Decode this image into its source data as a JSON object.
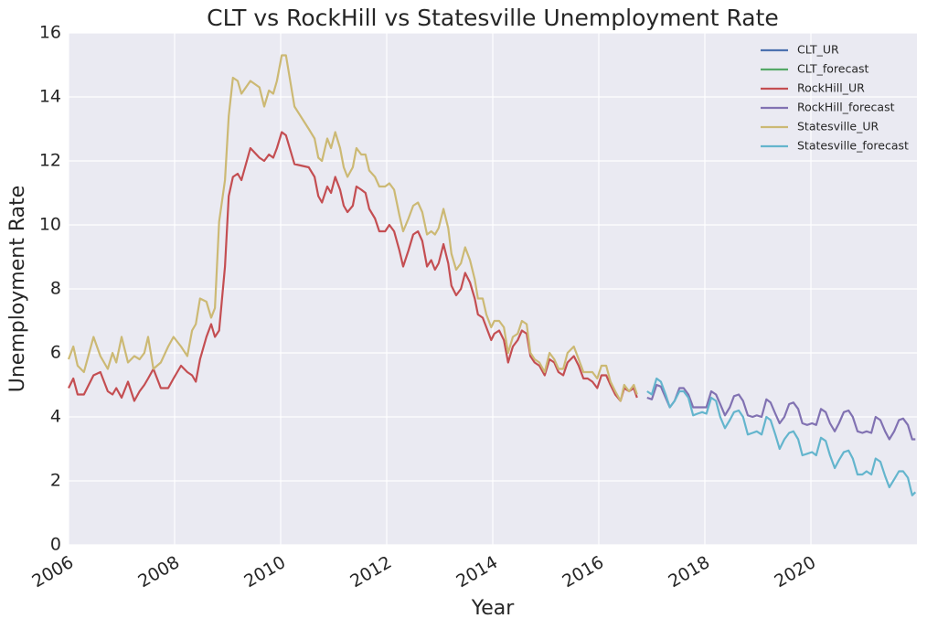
{
  "chart_data": {
    "type": "line",
    "title": "CLT vs RockHill vs Statesville Unemployment Rate",
    "x_label": "Year",
    "y_label": "Unemployment Rate",
    "xlim": [
      2006,
      2022
    ],
    "xticks": [
      2006,
      2008,
      2010,
      2012,
      2014,
      2016,
      2018,
      2020
    ],
    "ylim": [
      0,
      16
    ],
    "yticks": [
      0,
      2,
      4,
      6,
      8,
      10,
      12,
      14,
      16
    ],
    "grid": true,
    "legend": "upper right",
    "series": [
      {
        "name": "CLT_UR",
        "color": "#4c72b0",
        "x": [],
        "values": []
      },
      {
        "name": "CLT_forecast",
        "color": "#55a868",
        "x": [],
        "values": []
      },
      {
        "name": "RockHill_UR",
        "color": "#c44e52",
        "x": [
          2006.0,
          2006.09,
          2006.17,
          2006.29,
          2006.47,
          2006.6,
          2006.74,
          2006.83,
          2006.9,
          2007.0,
          2007.12,
          2007.24,
          2007.34,
          2007.43,
          2007.5,
          2007.6,
          2007.74,
          2007.88,
          2007.98,
          2008.12,
          2008.24,
          2008.33,
          2008.4,
          2008.48,
          2008.6,
          2008.69,
          2008.76,
          2008.84,
          2008.95,
          2009.02,
          2009.1,
          2009.19,
          2009.26,
          2009.43,
          2009.6,
          2009.69,
          2009.78,
          2009.86,
          2009.93,
          2010.02,
          2010.1,
          2010.26,
          2010.53,
          2010.64,
          2010.71,
          2010.78,
          2010.88,
          2010.95,
          2011.03,
          2011.12,
          2011.19,
          2011.26,
          2011.36,
          2011.43,
          2011.52,
          2011.6,
          2011.67,
          2011.78,
          2011.86,
          2011.97,
          2012.05,
          2012.14,
          2012.24,
          2012.31,
          2012.41,
          2012.5,
          2012.59,
          2012.67,
          2012.76,
          2012.84,
          2012.91,
          2012.98,
          2013.07,
          2013.16,
          2013.22,
          2013.31,
          2013.4,
          2013.48,
          2013.57,
          2013.66,
          2013.72,
          2013.81,
          2013.88,
          2013.97,
          2014.03,
          2014.12,
          2014.21,
          2014.29,
          2014.38,
          2014.47,
          2014.55,
          2014.64,
          2014.71,
          2014.79,
          2014.88,
          2014.98,
          2015.07,
          2015.16,
          2015.24,
          2015.33,
          2015.41,
          2015.53,
          2015.62,
          2015.71,
          2015.79,
          2015.88,
          2015.97,
          2016.05,
          2016.14,
          2016.22,
          2016.31,
          2016.41,
          2016.48,
          2016.57,
          2016.66,
          2016.72
        ],
        "values": [
          4.9,
          5.2,
          4.7,
          4.7,
          5.3,
          5.4,
          4.8,
          4.7,
          4.9,
          4.6,
          5.1,
          4.5,
          4.8,
          5.0,
          5.2,
          5.5,
          4.9,
          4.9,
          5.2,
          5.6,
          5.4,
          5.3,
          5.1,
          5.8,
          6.5,
          6.9,
          6.5,
          6.7,
          8.7,
          10.9,
          11.5,
          11.6,
          11.4,
          12.4,
          12.1,
          12.0,
          12.2,
          12.1,
          12.4,
          12.9,
          12.8,
          11.9,
          11.8,
          11.5,
          10.9,
          10.7,
          11.2,
          11.0,
          11.5,
          11.1,
          10.6,
          10.4,
          10.6,
          11.2,
          11.1,
          11.0,
          10.5,
          10.2,
          9.8,
          9.8,
          10.0,
          9.8,
          9.2,
          8.7,
          9.2,
          9.7,
          9.8,
          9.5,
          8.7,
          8.9,
          8.6,
          8.8,
          9.4,
          8.8,
          8.1,
          7.8,
          8.0,
          8.5,
          8.2,
          7.7,
          7.2,
          7.1,
          6.8,
          6.4,
          6.6,
          6.7,
          6.4,
          5.7,
          6.2,
          6.4,
          6.7,
          6.6,
          5.9,
          5.7,
          5.6,
          5.3,
          5.8,
          5.7,
          5.4,
          5.3,
          5.7,
          5.9,
          5.6,
          5.2,
          5.2,
          5.1,
          4.9,
          5.3,
          5.3,
          5.0,
          4.7,
          4.5,
          4.9,
          4.8,
          4.9,
          4.6
        ]
      },
      {
        "name": "RockHill_forecast",
        "color": "#8172b2",
        "x": [
          2016.91,
          2017.0,
          2017.09,
          2017.17,
          2017.26,
          2017.34,
          2017.43,
          2017.52,
          2017.6,
          2017.69,
          2017.78,
          2017.86,
          2017.95,
          2018.03,
          2018.12,
          2018.21,
          2018.29,
          2018.38,
          2018.47,
          2018.55,
          2018.64,
          2018.72,
          2018.81,
          2018.9,
          2018.98,
          2019.07,
          2019.16,
          2019.24,
          2019.33,
          2019.41,
          2019.5,
          2019.59,
          2019.67,
          2019.76,
          2019.84,
          2019.93,
          2020.02,
          2020.1,
          2020.19,
          2020.28,
          2020.36,
          2020.45,
          2020.53,
          2020.62,
          2020.71,
          2020.79,
          2020.88,
          2020.97,
          2021.05,
          2021.14,
          2021.22,
          2021.31,
          2021.4,
          2021.48,
          2021.57,
          2021.66,
          2021.74,
          2021.83,
          2021.91,
          2021.97
        ],
        "values": [
          4.6,
          4.55,
          5.0,
          4.95,
          4.6,
          4.3,
          4.5,
          4.9,
          4.9,
          4.7,
          4.3,
          4.3,
          4.3,
          4.3,
          4.8,
          4.7,
          4.4,
          4.05,
          4.3,
          4.65,
          4.7,
          4.5,
          4.05,
          4.0,
          4.05,
          4.0,
          4.55,
          4.45,
          4.1,
          3.8,
          4.0,
          4.4,
          4.45,
          4.25,
          3.8,
          3.75,
          3.8,
          3.75,
          4.25,
          4.15,
          3.8,
          3.55,
          3.8,
          4.15,
          4.2,
          4.0,
          3.55,
          3.5,
          3.55,
          3.5,
          4.0,
          3.9,
          3.55,
          3.3,
          3.55,
          3.9,
          3.95,
          3.75,
          3.3,
          3.3
        ]
      },
      {
        "name": "Statesville_UR",
        "color": "#ccb974",
        "x": [
          2006.0,
          2006.09,
          2006.17,
          2006.29,
          2006.47,
          2006.6,
          2006.74,
          2006.83,
          2006.9,
          2007.0,
          2007.12,
          2007.24,
          2007.34,
          2007.43,
          2007.5,
          2007.6,
          2007.74,
          2007.88,
          2007.98,
          2008.12,
          2008.24,
          2008.33,
          2008.4,
          2008.48,
          2008.6,
          2008.69,
          2008.76,
          2008.84,
          2008.95,
          2009.02,
          2009.1,
          2009.19,
          2009.26,
          2009.43,
          2009.6,
          2009.69,
          2009.78,
          2009.86,
          2009.93,
          2010.02,
          2010.1,
          2010.26,
          2010.53,
          2010.64,
          2010.71,
          2010.78,
          2010.88,
          2010.95,
          2011.03,
          2011.12,
          2011.19,
          2011.26,
          2011.36,
          2011.43,
          2011.52,
          2011.6,
          2011.67,
          2011.78,
          2011.86,
          2011.97,
          2012.05,
          2012.14,
          2012.24,
          2012.31,
          2012.41,
          2012.5,
          2012.59,
          2012.67,
          2012.76,
          2012.84,
          2012.91,
          2012.98,
          2013.07,
          2013.16,
          2013.22,
          2013.31,
          2013.4,
          2013.48,
          2013.57,
          2013.66,
          2013.72,
          2013.81,
          2013.88,
          2013.97,
          2014.03,
          2014.12,
          2014.21,
          2014.29,
          2014.38,
          2014.47,
          2014.55,
          2014.64,
          2014.71,
          2014.79,
          2014.88,
          2014.98,
          2015.07,
          2015.16,
          2015.24,
          2015.33,
          2015.41,
          2015.53,
          2015.62,
          2015.71,
          2015.79,
          2015.88,
          2015.97,
          2016.05,
          2016.14,
          2016.22,
          2016.31,
          2016.41,
          2016.48,
          2016.57,
          2016.66,
          2016.72
        ],
        "values": [
          5.8,
          6.2,
          5.6,
          5.4,
          6.5,
          5.9,
          5.5,
          6.0,
          5.7,
          6.5,
          5.7,
          5.9,
          5.8,
          6.0,
          6.5,
          5.5,
          5.7,
          6.2,
          6.5,
          6.2,
          5.9,
          6.7,
          6.9,
          7.7,
          7.6,
          7.1,
          7.4,
          10.1,
          11.4,
          13.4,
          14.6,
          14.5,
          14.1,
          14.5,
          14.3,
          13.7,
          14.2,
          14.1,
          14.5,
          15.3,
          15.3,
          13.7,
          13.0,
          12.7,
          12.1,
          12.0,
          12.7,
          12.4,
          12.9,
          12.4,
          11.8,
          11.5,
          11.8,
          12.4,
          12.2,
          12.2,
          11.7,
          11.5,
          11.2,
          11.2,
          11.3,
          11.1,
          10.3,
          9.8,
          10.2,
          10.6,
          10.7,
          10.4,
          9.7,
          9.8,
          9.7,
          9.9,
          10.5,
          9.9,
          9.1,
          8.6,
          8.8,
          9.3,
          8.9,
          8.3,
          7.7,
          7.7,
          7.2,
          6.8,
          7.0,
          7.0,
          6.8,
          6.0,
          6.5,
          6.6,
          7.0,
          6.9,
          6.0,
          5.8,
          5.7,
          5.4,
          6.0,
          5.8,
          5.5,
          5.5,
          6.0,
          6.2,
          5.8,
          5.4,
          5.4,
          5.4,
          5.2,
          5.6,
          5.6,
          5.1,
          4.8,
          4.5,
          5.0,
          4.8,
          5.0,
          4.7
        ]
      },
      {
        "name": "Statesville_forecast",
        "color": "#64b5cd",
        "x": [
          2016.91,
          2017.0,
          2017.09,
          2017.17,
          2017.26,
          2017.34,
          2017.43,
          2017.52,
          2017.6,
          2017.69,
          2017.78,
          2017.86,
          2017.95,
          2018.03,
          2018.12,
          2018.21,
          2018.29,
          2018.38,
          2018.47,
          2018.55,
          2018.64,
          2018.72,
          2018.81,
          2018.9,
          2018.98,
          2019.07,
          2019.16,
          2019.24,
          2019.33,
          2019.41,
          2019.5,
          2019.59,
          2019.67,
          2019.76,
          2019.84,
          2019.93,
          2020.02,
          2020.1,
          2020.19,
          2020.28,
          2020.36,
          2020.45,
          2020.53,
          2020.62,
          2020.71,
          2020.79,
          2020.88,
          2020.97,
          2021.05,
          2021.14,
          2021.22,
          2021.31,
          2021.4,
          2021.48,
          2021.57,
          2021.66,
          2021.74,
          2021.83,
          2021.91,
          2021.97
        ],
        "values": [
          4.8,
          4.7,
          5.2,
          5.1,
          4.7,
          4.3,
          4.5,
          4.8,
          4.8,
          4.6,
          4.05,
          4.1,
          4.15,
          4.1,
          4.6,
          4.5,
          4.0,
          3.65,
          3.9,
          4.15,
          4.2,
          4.0,
          3.45,
          3.5,
          3.55,
          3.45,
          4.0,
          3.9,
          3.45,
          3.0,
          3.3,
          3.5,
          3.55,
          3.3,
          2.8,
          2.85,
          2.9,
          2.8,
          3.35,
          3.25,
          2.8,
          2.4,
          2.65,
          2.9,
          2.95,
          2.7,
          2.2,
          2.2,
          2.3,
          2.2,
          2.7,
          2.6,
          2.15,
          1.8,
          2.05,
          2.3,
          2.3,
          2.1,
          1.55,
          1.65
        ]
      }
    ]
  }
}
